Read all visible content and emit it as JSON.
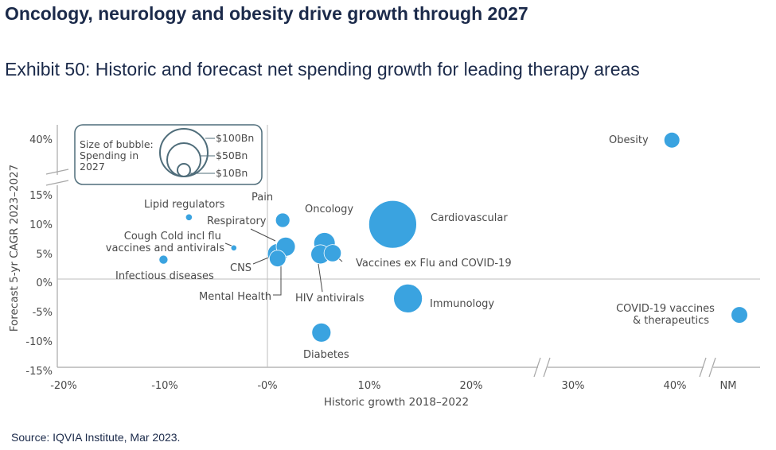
{
  "page": {
    "title": "Oncology, neurology and obesity drive growth through 2027",
    "exhibit_title": "Exhibit 50: Historic and forecast net spending growth for leading therapy areas",
    "source": "Source: IQVIA Institute, Mar 2023."
  },
  "colors": {
    "bubble": "#3aa3e0",
    "bubble_stroke": "#ffffff",
    "axis": "#a8a8a8",
    "text": "#4a4a4a",
    "legend_stroke": "#4f6d7a",
    "heading": "#1b2a4a"
  },
  "chart_data": {
    "type": "bubble",
    "title": "",
    "xlabel": "Historic growth 2018–2022",
    "ylabel": "Forecast 5-yr CAGR 2023–2027",
    "x_ticks": [
      "-20%",
      "-10%",
      "-0%",
      "10%",
      "20%",
      "30%",
      "40%",
      "NM"
    ],
    "y_ticks": [
      "40%",
      "15%",
      "10%",
      "5%",
      "0%",
      "-5%",
      "-10%",
      "-15%"
    ],
    "x_axis_breaks": [
      "between 20% and 30%",
      "between 40% and NM"
    ],
    "y_axis_breaks": [
      "between 15% and 40%"
    ],
    "grid": false,
    "legend": {
      "title": "Size of bubble: Spending in 2027",
      "position": "top-left",
      "sizes": [
        {
          "label": "$100Bn",
          "value": 100
        },
        {
          "label": "$50Bn",
          "value": 50
        },
        {
          "label": "$10Bn",
          "value": 10
        }
      ]
    },
    "points": [
      {
        "name": "Obesity",
        "x": 39.7,
        "y": 39.2,
        "spending_bn": 11
      },
      {
        "name": "Lipid regulators",
        "x": -7.7,
        "y": 10.5,
        "spending_bn": 2
      },
      {
        "name": "Pain",
        "x": 1.5,
        "y": 10.0,
        "spending_bn": 9
      },
      {
        "name": "Respiratory",
        "x": 1.8,
        "y": 5.5,
        "spending_bn": 16
      },
      {
        "name": "Cough Cold incl flu vaccines and antivirals",
        "x": -3.3,
        "y": 5.3,
        "spending_bn": 1.5
      },
      {
        "name": "Infectious diseases",
        "x": -10.2,
        "y": 3.3,
        "spending_bn": 3.5
      },
      {
        "name": "CNS",
        "x": 1.0,
        "y": 4.3,
        "spending_bn": 18
      },
      {
        "name": "Mental Health",
        "x": 1.0,
        "y": 3.5,
        "spending_bn": 12
      },
      {
        "name": "Oncology",
        "x": 5.6,
        "y": 6.1,
        "spending_bn": 20
      },
      {
        "name": "Vaccines ex Flu and COVID-19",
        "x": 6.4,
        "y": 4.4,
        "spending_bn": 13
      },
      {
        "name": "HIV antivirals",
        "x": 5.2,
        "y": 4.2,
        "spending_bn": 16
      },
      {
        "name": "Cardiovascular",
        "x": 12.3,
        "y": 9.3,
        "spending_bn": 100
      },
      {
        "name": "Immunology",
        "x": 13.8,
        "y": -3.3,
        "spending_bn": 36
      },
      {
        "name": "Diabetes",
        "x": 5.3,
        "y": -9.1,
        "spending_bn": 16
      },
      {
        "name": "COVID-19 vaccines & therapeutics",
        "x": "NM",
        "y": -6.1,
        "spending_bn": 12
      }
    ]
  }
}
